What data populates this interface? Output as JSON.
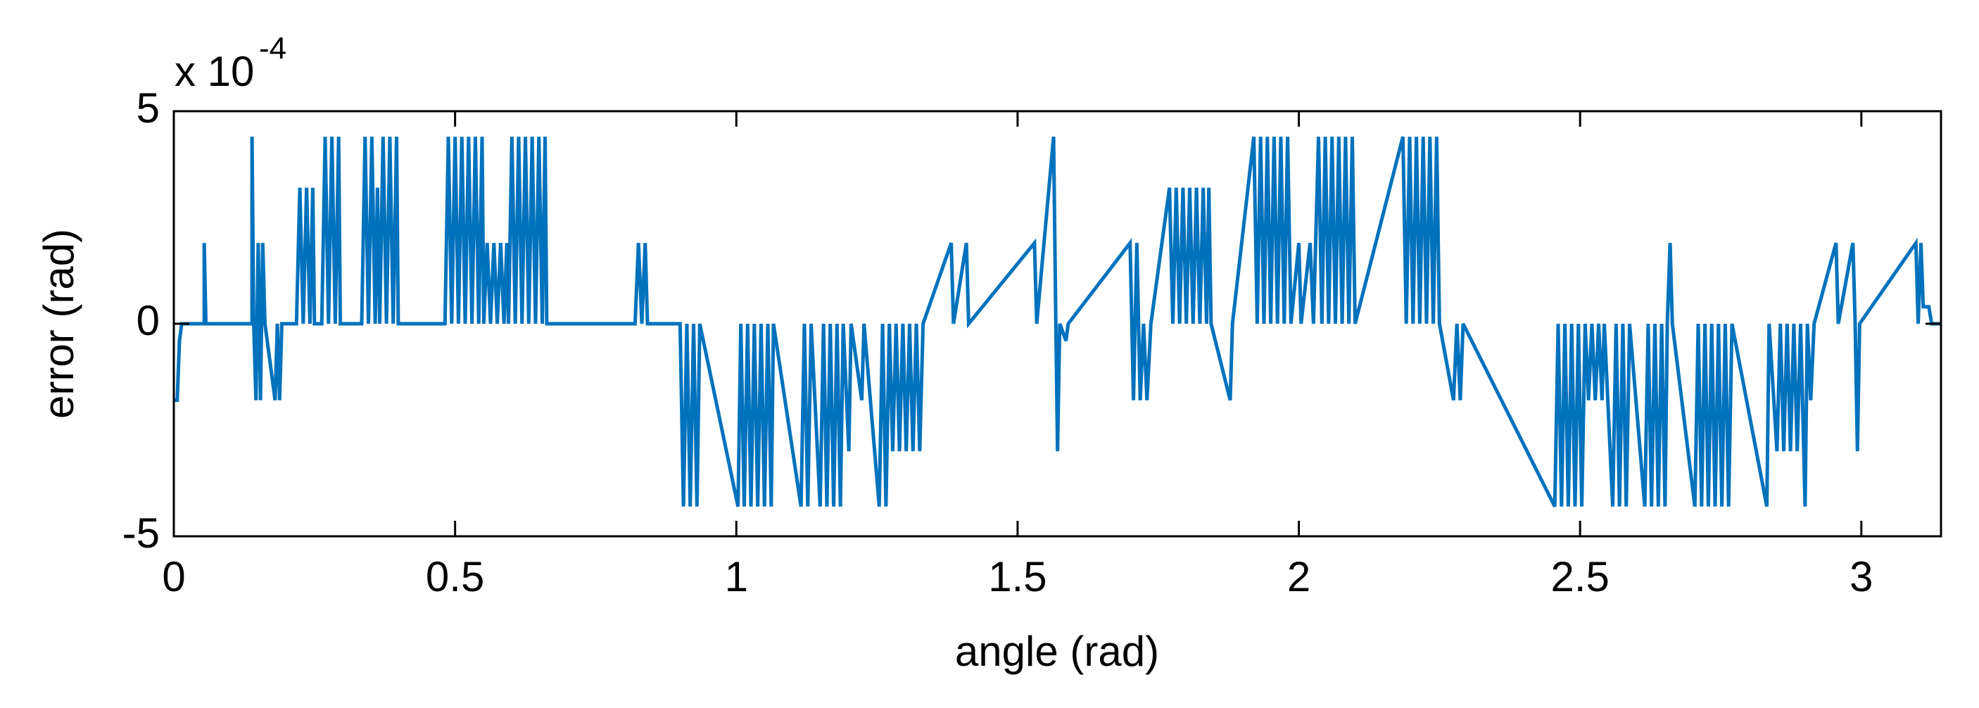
{
  "chart_data": {
    "type": "line",
    "xlabel": "angle (rad)",
    "ylabel": "error (rad)",
    "y_multiplier": {
      "base": "x 10",
      "exponent": "-4"
    },
    "color": "#0072bd",
    "xlim": [
      0,
      3.1416
    ],
    "xticks": [
      0,
      0.5,
      1,
      1.5,
      2,
      2.5,
      3
    ],
    "ylim": [
      -5,
      5
    ],
    "yticks": [
      -5,
      0,
      5
    ],
    "x": [
      0,
      0.006,
      0.01,
      0.014,
      0.054,
      0.054,
      0.057,
      0.139,
      0.139,
      0.142,
      0.146,
      0.15,
      0.154,
      0.158,
      0.162,
      0.18,
      0.184,
      0.188,
      0.192,
      0.218,
      0.224,
      0.23,
      0.236,
      0.242,
      0.247,
      0.25,
      0.263,
      0.269,
      0.275,
      0.281,
      0.287,
      0.293,
      0.296,
      0.334,
      0.34,
      0.346,
      0.352,
      0.358,
      0.362,
      0.366,
      0.372,
      0.378,
      0.384,
      0.39,
      0.396,
      0.399,
      0.482,
      0.488,
      0.494,
      0.5,
      0.506,
      0.512,
      0.518,
      0.524,
      0.53,
      0.536,
      0.542,
      0.548,
      0.551,
      0.557,
      0.563,
      0.569,
      0.575,
      0.581,
      0.587,
      0.592,
      0.595,
      0.601,
      0.607,
      0.613,
      0.619,
      0.625,
      0.631,
      0.637,
      0.643,
      0.649,
      0.655,
      0.66,
      0.663,
      0.82,
      0.826,
      0.832,
      0.838,
      0.842,
      0.9,
      0.906,
      0.912,
      0.918,
      0.924,
      0.93,
      0.935,
      1.003,
      1.008,
      1.014,
      1.02,
      1.026,
      1.032,
      1.038,
      1.044,
      1.05,
      1.056,
      1.062,
      1.066,
      1.115,
      1.121,
      1.127,
      1.133,
      1.149,
      1.155,
      1.161,
      1.167,
      1.173,
      1.179,
      1.185,
      1.19,
      1.2,
      1.204,
      1.223,
      1.227,
      1.254,
      1.26,
      1.266,
      1.272,
      1.278,
      1.284,
      1.29,
      1.296,
      1.302,
      1.308,
      1.314,
      1.32,
      1.326,
      1.332,
      1.382,
      1.386,
      1.409,
      1.413,
      1.53,
      1.534,
      1.564,
      1.568,
      1.571,
      1.575,
      1.586,
      1.59,
      1.7,
      1.706,
      1.712,
      1.718,
      1.724,
      1.73,
      1.737,
      1.77,
      1.776,
      1.782,
      1.788,
      1.794,
      1.8,
      1.806,
      1.812,
      1.818,
      1.824,
      1.83,
      1.836,
      1.84,
      1.844,
      1.878,
      1.882,
      1.92,
      1.926,
      1.932,
      1.938,
      1.944,
      1.95,
      1.956,
      1.962,
      1.968,
      1.974,
      1.98,
      1.986,
      2.0,
      2.004,
      2.02,
      2.026,
      2.035,
      2.041,
      2.047,
      2.053,
      2.059,
      2.065,
      2.071,
      2.077,
      2.083,
      2.089,
      2.095,
      2.1,
      2.185,
      2.191,
      2.197,
      2.203,
      2.209,
      2.215,
      2.221,
      2.227,
      2.233,
      2.239,
      2.245,
      2.25,
      2.275,
      2.281,
      2.287,
      2.292,
      2.455,
      2.461,
      2.467,
      2.473,
      2.479,
      2.485,
      2.491,
      2.497,
      2.503,
      2.509,
      2.515,
      2.521,
      2.527,
      2.533,
      2.539,
      2.543,
      2.558,
      2.564,
      2.57,
      2.576,
      2.582,
      2.588,
      2.615,
      2.621,
      2.627,
      2.633,
      2.639,
      2.645,
      2.651,
      2.655,
      2.66,
      2.664,
      2.704,
      2.71,
      2.716,
      2.722,
      2.728,
      2.734,
      2.74,
      2.746,
      2.752,
      2.758,
      2.764,
      2.77,
      2.832,
      2.836,
      2.85,
      2.856,
      2.862,
      2.868,
      2.874,
      2.88,
      2.886,
      2.892,
      2.9,
      2.904,
      2.91,
      2.916,
      2.955,
      2.959,
      2.985,
      2.989,
      2.993,
      2.997,
      3.097,
      3.101,
      3.106,
      3.11,
      3.12,
      3.125,
      3.1416
    ],
    "values": [
      -1.8,
      -1.8,
      -0.4,
      0,
      0,
      1.9,
      0,
      0,
      4.4,
      0,
      -1.8,
      1.9,
      -1.8,
      1.9,
      0,
      -1.8,
      0,
      -1.8,
      0,
      0,
      3.2,
      0,
      3.2,
      0,
      3.2,
      0,
      0,
      4.4,
      0,
      4.4,
      0,
      4.4,
      0,
      0,
      4.4,
      0,
      4.4,
      0,
      3.2,
      0,
      4.4,
      0,
      4.4,
      0,
      4.4,
      0,
      0,
      4.4,
      0,
      4.4,
      0,
      4.4,
      0,
      4.4,
      0,
      4.4,
      0,
      4.4,
      0,
      1.9,
      0,
      1.9,
      0,
      1.9,
      0,
      1.9,
      0,
      4.4,
      0,
      4.4,
      0,
      4.4,
      0,
      4.4,
      0,
      4.4,
      0,
      4.4,
      0,
      0,
      1.9,
      0,
      1.9,
      0,
      0,
      -4.3,
      0,
      -4.3,
      0,
      -4.3,
      0,
      -4.3,
      0,
      -4.3,
      0,
      -4.3,
      0,
      -4.3,
      0,
      -4.3,
      0,
      -4.3,
      0,
      -4.3,
      0,
      -4.3,
      0,
      -4.3,
      0,
      -4.3,
      0,
      -4.3,
      0,
      -4.3,
      0,
      -3.0,
      0,
      -1.8,
      0,
      -4.3,
      0,
      -4.3,
      0,
      -3.0,
      0,
      -3.0,
      0,
      -3.0,
      0,
      -3.0,
      0,
      -3.0,
      0,
      1.9,
      0,
      1.9,
      0,
      1.9,
      0,
      4.4,
      0,
      -3.0,
      0,
      -0.4,
      0,
      1.9,
      -1.8,
      1.9,
      -1.8,
      0,
      -1.8,
      0,
      3.2,
      0,
      3.2,
      0,
      3.2,
      0,
      3.2,
      0,
      3.2,
      0,
      3.2,
      0,
      3.2,
      0,
      -1.8,
      0,
      4.4,
      0,
      4.4,
      0,
      4.4,
      0,
      4.4,
      0,
      4.4,
      0,
      4.4,
      0,
      1.9,
      0,
      1.9,
      0,
      4.4,
      0,
      4.4,
      0,
      4.4,
      0,
      4.4,
      0,
      4.4,
      0,
      4.4,
      0,
      4.4,
      0,
      4.4,
      0,
      4.4,
      0,
      4.4,
      0,
      4.4,
      0,
      4.4,
      0,
      -1.8,
      0,
      -1.8,
      0,
      -4.3,
      0,
      -4.3,
      0,
      -4.3,
      0,
      -4.3,
      0,
      -4.3,
      0,
      -1.8,
      0,
      -1.8,
      0,
      -1.8,
      0,
      -4.3,
      0,
      -4.3,
      0,
      -4.3,
      0,
      -4.3,
      0,
      -4.3,
      0,
      -4.3,
      0,
      -4.3,
      0,
      1.9,
      0,
      -4.3,
      0,
      -4.3,
      0,
      -4.3,
      0,
      -4.3,
      0,
      -4.3,
      0,
      -4.3,
      0,
      -4.3,
      0,
      -3.0,
      0,
      -3.0,
      0,
      -3.0,
      0,
      -3.0,
      0,
      -4.3,
      0,
      -1.8,
      0,
      1.9,
      0,
      1.9,
      0,
      -3.0,
      0,
      1.9,
      0,
      1.9,
      0.4,
      0.4,
      0,
      0
    ]
  }
}
